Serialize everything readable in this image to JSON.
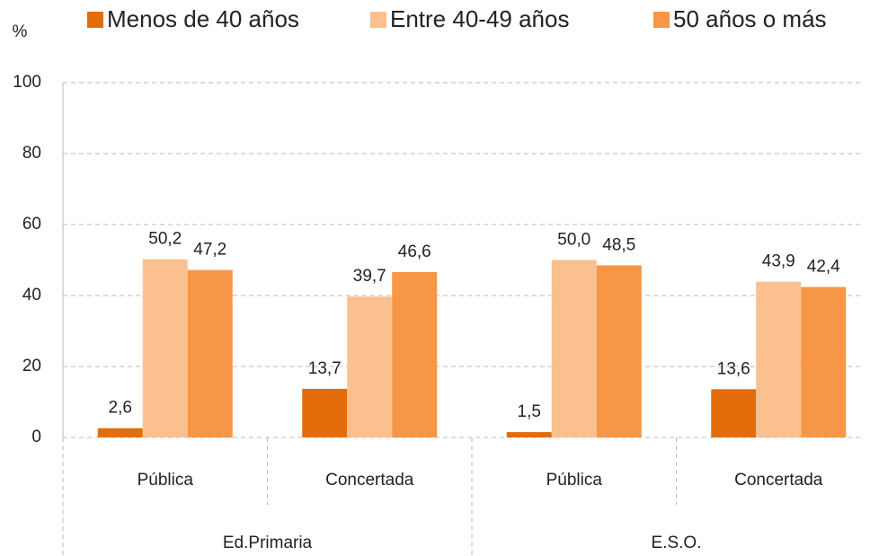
{
  "chart_data": {
    "type": "bar",
    "y_label": "%",
    "categories": [
      "Pública",
      "Concertada",
      "Pública",
      "Concertada"
    ],
    "groups": [
      "Ed.Primaria",
      "E.S.O."
    ],
    "series": [
      {
        "name": "Menos de 40 años",
        "color": "#e46c0a",
        "values": [
          2.6,
          13.7,
          1.5,
          13.6
        ],
        "value_labels": [
          "2,6",
          "13,7",
          "1,5",
          "13,6"
        ]
      },
      {
        "name": "Entre 40-49 años",
        "color": "#fac090",
        "values": [
          50.2,
          39.7,
          50.0,
          43.9
        ],
        "value_labels": [
          "50,2",
          "39,7",
          "50,0",
          "43,9"
        ]
      },
      {
        "name": "50 años o más",
        "color": "#f79646",
        "values": [
          47.2,
          46.6,
          48.5,
          42.4
        ],
        "value_labels": [
          "47,2",
          "46,6",
          "48,5",
          "42,4"
        ]
      }
    ],
    "ylim": [
      0,
      100
    ],
    "yticks": [
      0,
      20,
      40,
      60,
      80,
      100
    ],
    "grid": true,
    "legend": "top"
  }
}
